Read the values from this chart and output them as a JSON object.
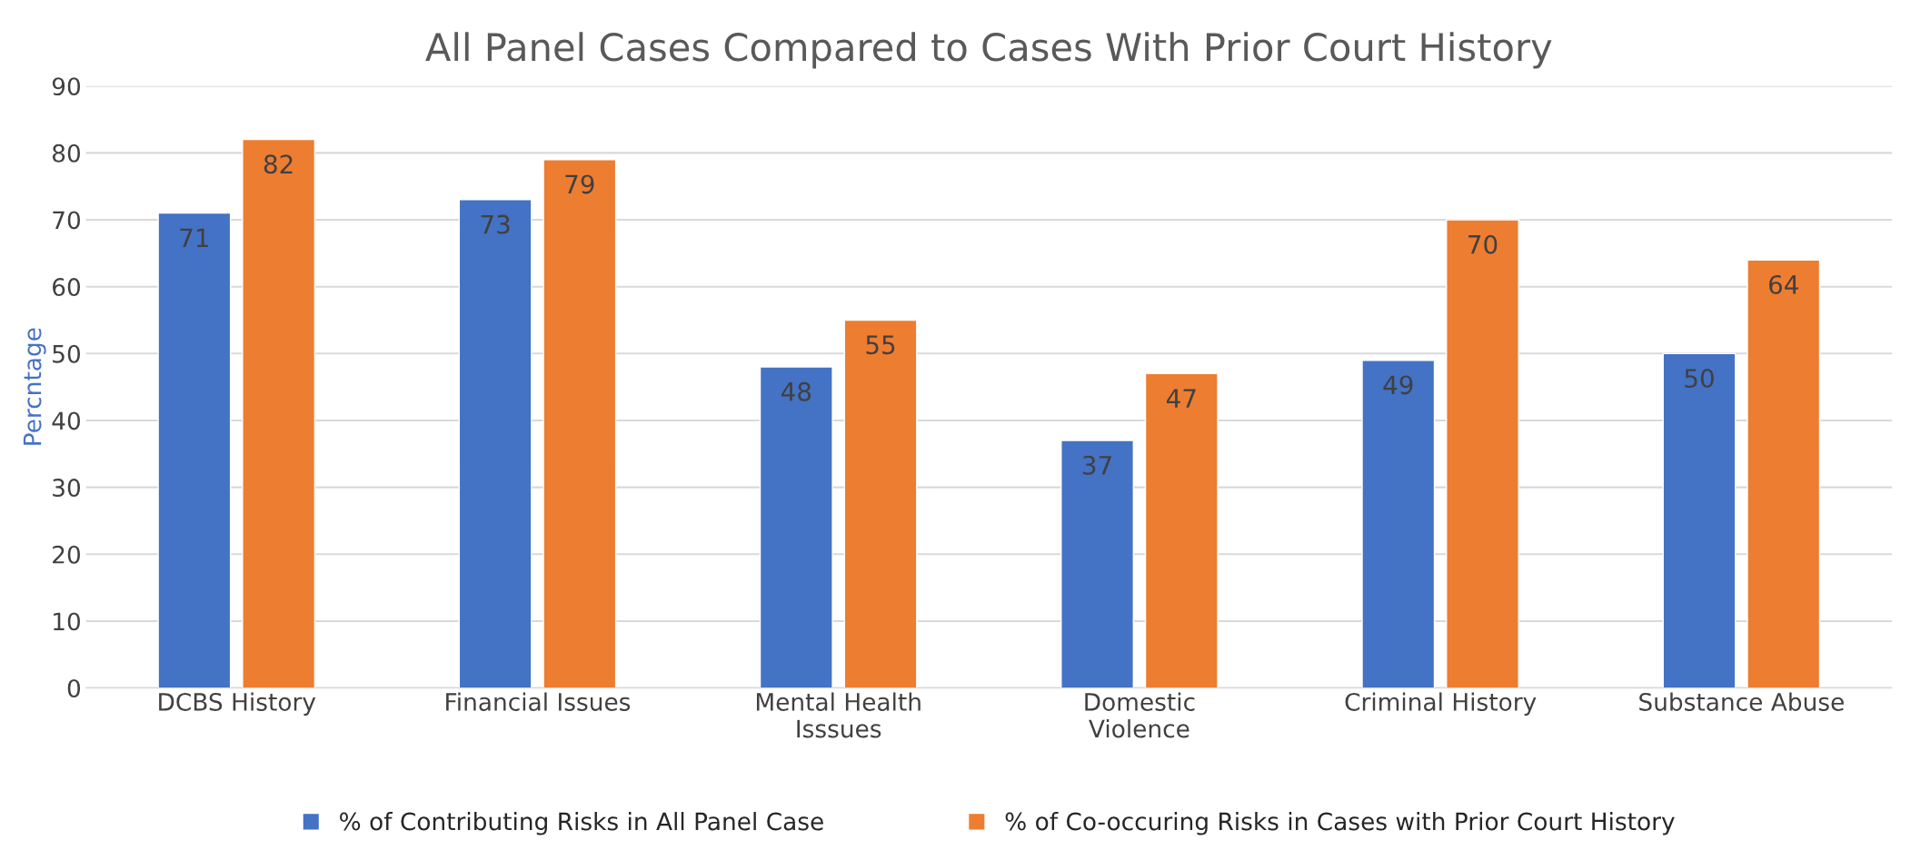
{
  "chart_data": {
    "type": "bar",
    "title": "All Panel Cases Compared to Cases With Prior Court History",
    "ylabel": "Percntage",
    "categories": [
      "DCBS History",
      "Financial Issues",
      "Mental Health\nIsssues",
      "Domestic\nViolence",
      "Criminal History",
      "Substance Abuse"
    ],
    "series": [
      {
        "name": "% of Contributing Risks in All Panel Case",
        "color": "#4472c4",
        "values": [
          71,
          73,
          48,
          37,
          49,
          50
        ]
      },
      {
        "name": "% of Co-occuring Risks in Cases with Prior Court History",
        "color": "#ed7d31",
        "values": [
          82,
          79,
          55,
          47,
          70,
          64
        ]
      }
    ],
    "ylim": [
      0,
      90
    ],
    "yticks": [
      0,
      10,
      20,
      30,
      40,
      50,
      60,
      70,
      80,
      90
    ],
    "grid": "y",
    "legend": "bottom",
    "data_labels": true
  }
}
